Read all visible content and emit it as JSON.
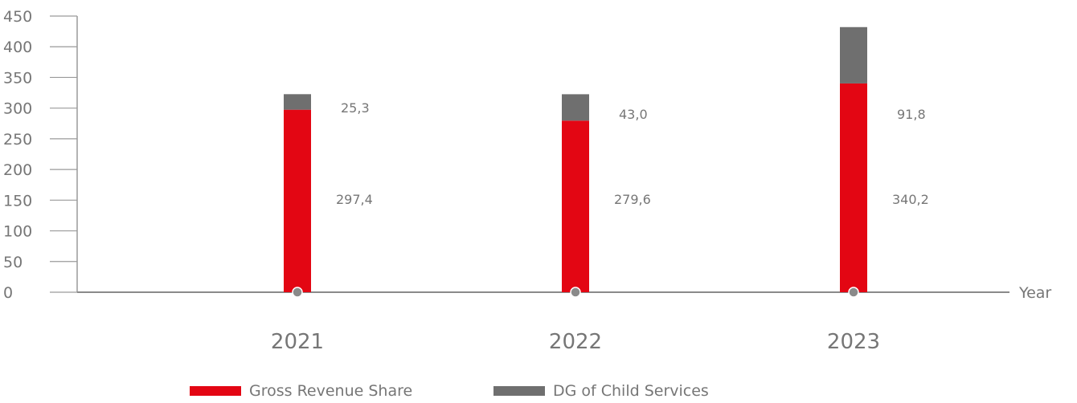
{
  "chart_data": {
    "type": "bar",
    "stacked": true,
    "categories": [
      "2021",
      "2022",
      "2023"
    ],
    "series": [
      {
        "name": "Gross Revenue Share",
        "values": [
          297.4,
          279.6,
          340.2
        ],
        "labels": [
          "297,4",
          "279,6",
          "340,2"
        ],
        "color": "#e30613"
      },
      {
        "name": "DG of Child Services",
        "values": [
          25.3,
          43.0,
          91.8
        ],
        "labels": [
          "25,3",
          "43,0",
          "91,8"
        ],
        "color": "#6f6f6f"
      }
    ],
    "xlabel": "Year",
    "ylabel": "",
    "ylim": [
      0,
      450
    ],
    "yticks": [
      0,
      50,
      100,
      150,
      200,
      250,
      300,
      350,
      400,
      450
    ],
    "grid": false,
    "legend": "bottom"
  }
}
